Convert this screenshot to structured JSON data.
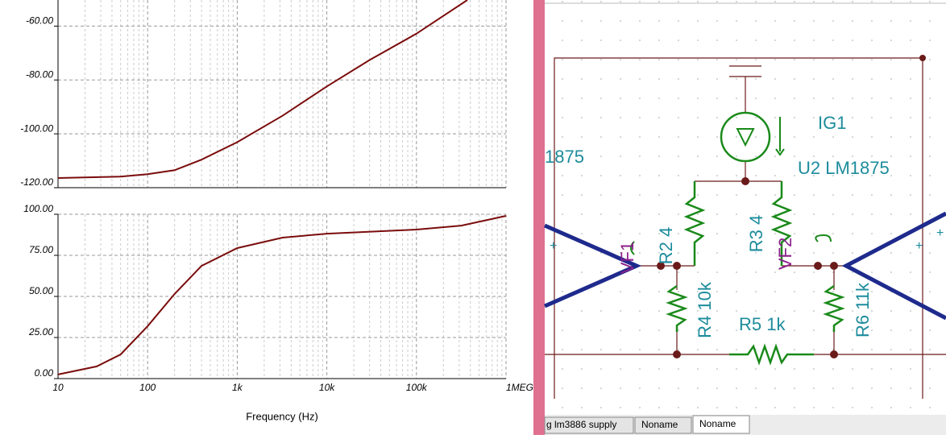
{
  "chart_data": [
    {
      "type": "line",
      "xscale": "log",
      "show_xtick_labels": false,
      "x": [
        10,
        50,
        100,
        200,
        400,
        1000,
        3200,
        10000,
        30000,
        100000,
        370000
      ],
      "series": [
        {
          "color": "#7b0c0c",
          "values": [
            -116.4,
            -115.9,
            -115,
            -113.5,
            -109.6,
            -103.1,
            -93.3,
            -82.4,
            -72.6,
            -62.8,
            -50.3
          ]
        }
      ],
      "xlim": [
        10,
        1000000
      ],
      "xticks": [
        10,
        100,
        1000,
        10000,
        100000,
        1000000
      ],
      "ylim": [
        -120,
        -50
      ],
      "yticks": [
        {
          "value": -120,
          "label": "-120.00"
        },
        {
          "value": -100,
          "label": "-100.00"
        },
        {
          "value": -80,
          "label": "-80.00"
        },
        {
          "value": -60,
          "label": "-60.00"
        }
      ],
      "grid": true
    },
    {
      "type": "line",
      "xscale": "log",
      "show_xtick_labels": true,
      "xlabel": "Frequency (Hz)",
      "x": [
        10,
        27,
        50,
        100,
        200,
        400,
        1000,
        3200,
        10000,
        100000,
        316000,
        1000000
      ],
      "series": [
        {
          "color": "#7b0c0c",
          "values": [
            2.5,
            7.4,
            14.7,
            31.9,
            51.5,
            68.6,
            79.4,
            85.8,
            88.2,
            90.7,
            93.1,
            99
          ]
        }
      ],
      "xlim": [
        10,
        1000000
      ],
      "xticks": [
        10,
        100,
        {
          "value": 1000,
          "label": "1k"
        },
        {
          "value": 10000,
          "label": "10k"
        },
        {
          "value": 100000,
          "label": "100k"
        },
        {
          "value": 1000000,
          "label": "1MEG"
        }
      ],
      "ylim": [
        0,
        100
      ],
      "yticks": [
        {
          "value": 0,
          "label": "0.00"
        },
        {
          "value": 25,
          "label": "25.00"
        },
        {
          "value": 50,
          "label": "50.00"
        },
        {
          "value": 75,
          "label": "75.00"
        },
        {
          "value": 100,
          "label": "100.00"
        }
      ],
      "grid": true
    }
  ],
  "schematic": {
    "labels": [
      "1875",
      "IG1",
      "U2 LM1875",
      "R2 4",
      "R3 4",
      "R4 10k",
      "R5 1k",
      "R6 11k",
      "VF1",
      "VF2",
      "+",
      "+",
      "+"
    ]
  },
  "tabs": [
    "g lm3886 supply",
    "Noname",
    "Noname"
  ]
}
